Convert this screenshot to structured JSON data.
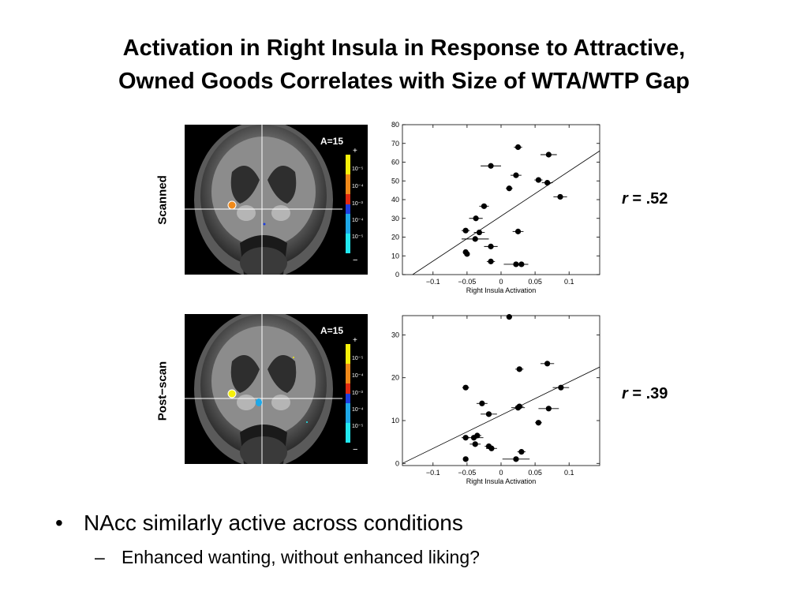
{
  "title": {
    "line1": "Activation in Right Insula in Response to Attractive,",
    "line2": "Owned Goods Correlates with Size of WTA/WTP Gap"
  },
  "panels": [
    {
      "condition_label": "Scanned",
      "slice_label": "A=15",
      "colorbar": {
        "plus": "+",
        "minus": "−",
        "ticks": [
          "10⁻⁵",
          "10⁻⁴",
          "10⁻³",
          "10⁻⁴",
          "10⁻⁵"
        ]
      },
      "r_label": {
        "prefix": "r",
        "value": " = .52"
      }
    },
    {
      "condition_label": "Post−scan",
      "slice_label": "A=15",
      "colorbar": {
        "plus": "+",
        "minus": "−",
        "ticks": [
          "10⁻⁵",
          "10⁻⁴",
          "10⁻³",
          "10⁻⁴",
          "10⁻⁵"
        ]
      },
      "r_label": {
        "prefix": "r",
        "value": " = .39"
      }
    }
  ],
  "chart_data": [
    {
      "type": "scatter",
      "xlabel": "Right Insula Activation",
      "ylabel": "",
      "xlim": [
        -0.145,
        0.145
      ],
      "ylim": [
        0,
        80
      ],
      "xticks": [
        -0.1,
        -0.05,
        0,
        0.05,
        0.1
      ],
      "xtick_labels": [
        "−0.1",
        "−0.05",
        "0",
        "0.05",
        "0.1"
      ],
      "yticks": [
        0,
        10,
        20,
        30,
        40,
        50,
        60,
        70,
        80
      ],
      "ytick_labels": [
        "0",
        "10",
        "20",
        "30",
        "40",
        "50",
        "60",
        "70",
        "80"
      ],
      "grid": false,
      "fit_line": {
        "x": [
          -0.13,
          0.145
        ],
        "y": [
          0,
          66
        ]
      },
      "points": [
        {
          "x": 0.025,
          "y": 68,
          "xerr": 0.006
        },
        {
          "x": 0.07,
          "y": 64,
          "xerr": 0.012
        },
        {
          "x": -0.015,
          "y": 58,
          "xerr": 0.015
        },
        {
          "x": 0.022,
          "y": 53,
          "xerr": 0.008
        },
        {
          "x": 0.055,
          "y": 50.5,
          "xerr": 0.006
        },
        {
          "x": 0.068,
          "y": 49,
          "xerr": 0.008
        },
        {
          "x": 0.012,
          "y": 46,
          "xerr": 0.005
        },
        {
          "x": 0.087,
          "y": 41.5,
          "xerr": 0.01
        },
        {
          "x": -0.025,
          "y": 36.5,
          "xerr": 0.007
        },
        {
          "x": -0.037,
          "y": 30,
          "xerr": 0.01
        },
        {
          "x": -0.052,
          "y": 23.5,
          "xerr": 0.006
        },
        {
          "x": -0.032,
          "y": 22.5,
          "xerr": 0.008
        },
        {
          "x": 0.025,
          "y": 23,
          "xerr": 0.008
        },
        {
          "x": -0.038,
          "y": 19,
          "xerr": 0.02
        },
        {
          "x": -0.015,
          "y": 15,
          "xerr": 0.01
        },
        {
          "x": -0.052,
          "y": 12,
          "xerr": 0.004
        },
        {
          "x": -0.05,
          "y": 11,
          "xerr": 0.004
        },
        {
          "x": -0.015,
          "y": 7,
          "xerr": 0.006
        },
        {
          "x": 0.022,
          "y": 5.5,
          "xerr": 0.018
        },
        {
          "x": 0.03,
          "y": 5.5,
          "xerr": 0.01
        }
      ]
    },
    {
      "type": "scatter",
      "xlabel": "Right Insula Activation",
      "ylabel": "",
      "xlim": [
        -0.145,
        0.145
      ],
      "ylim": [
        -0.5,
        34.5
      ],
      "xticks": [
        -0.1,
        -0.05,
        0,
        0.05,
        0.1
      ],
      "xtick_labels": [
        "−0.1",
        "−0.05",
        "0",
        "0.05",
        "0.1"
      ],
      "yticks": [
        0,
        10,
        20,
        30
      ],
      "ytick_labels": [
        "0",
        "10",
        "20",
        "30"
      ],
      "grid": false,
      "fit_line": {
        "x": [
          -0.145,
          0.145
        ],
        "y": [
          0,
          22.5
        ]
      },
      "points": [
        {
          "x": 0.012,
          "y": 34.2,
          "xerr": 0.004
        },
        {
          "x": 0.068,
          "y": 23.3,
          "xerr": 0.01
        },
        {
          "x": 0.027,
          "y": 22,
          "xerr": 0.006
        },
        {
          "x": -0.052,
          "y": 17.7,
          "xerr": 0.005
        },
        {
          "x": 0.088,
          "y": 17.7,
          "xerr": 0.012
        },
        {
          "x": -0.028,
          "y": 14,
          "xerr": 0.008
        },
        {
          "x": 0.025,
          "y": 13,
          "xerr": 0.01
        },
        {
          "x": 0.027,
          "y": 13.3,
          "xerr": 0.006
        },
        {
          "x": 0.07,
          "y": 12.8,
          "xerr": 0.015
        },
        {
          "x": -0.018,
          "y": 11.5,
          "xerr": 0.012
        },
        {
          "x": 0.055,
          "y": 9.5,
          "xerr": 0.005
        },
        {
          "x": -0.052,
          "y": 6,
          "xerr": 0.006
        },
        {
          "x": -0.04,
          "y": 6,
          "xerr": 0.014
        },
        {
          "x": -0.035,
          "y": 6.5,
          "xerr": 0.006
        },
        {
          "x": -0.038,
          "y": 4.5,
          "xerr": 0.008
        },
        {
          "x": -0.018,
          "y": 4,
          "xerr": 0.006
        },
        {
          "x": -0.014,
          "y": 3.5,
          "xerr": 0.008
        },
        {
          "x": 0.03,
          "y": 2.7,
          "xerr": 0.006
        },
        {
          "x": -0.052,
          "y": 1,
          "xerr": 0.004
        },
        {
          "x": 0.022,
          "y": 1,
          "xerr": 0.02
        }
      ]
    }
  ],
  "bullets": [
    {
      "marker": "•",
      "text": "NAcc similarly active across conditions"
    },
    {
      "marker": "–",
      "text": "Enhanced wanting, without enhanced liking?"
    }
  ],
  "colors": {
    "cb_yellow": "#f6f00a",
    "cb_orange": "#f08a1a",
    "cb_red": "#e02a12",
    "cb_blue": "#1e3fe0",
    "cb_lightblue": "#1ea8e8",
    "cb_cyan": "#22e8f0"
  }
}
